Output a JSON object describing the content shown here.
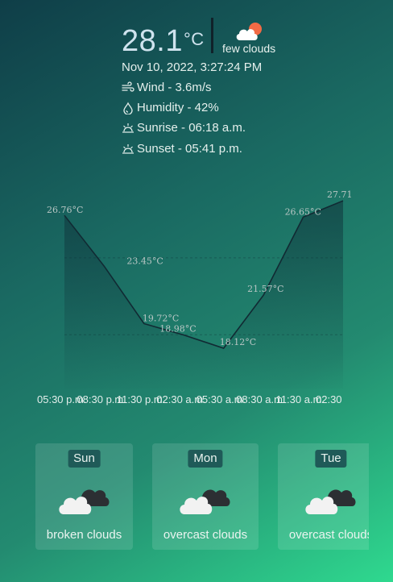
{
  "current": {
    "temperature": "28.1",
    "unit": "°C",
    "condition": "few clouds",
    "condition_icon": "few-clouds-icon",
    "datetime": "Nov 10, 2022, 3:27:24 PM",
    "wind": "Wind - 3.6m/s",
    "humidity": "Humidity - 42%",
    "sunrise": "Sunrise - 06:18 a.m.",
    "sunset": "Sunset - 05:41 p.m."
  },
  "chart_data": {
    "type": "area",
    "categories": [
      "05:30 p.m.",
      "08:30 p.m.",
      "11:30 p.m.",
      "02:30 a.m.",
      "05:30 a.m.",
      "08:30 a.m.",
      "11:30 a.m.",
      "02:30"
    ],
    "data_labels": [
      "26.76°C",
      "23.45°C",
      "19.72°C",
      "18.98°C",
      "18.12°C",
      "21.57°C",
      "26.65°C",
      "27.71"
    ],
    "values": [
      26.76,
      23.45,
      19.72,
      18.98,
      18.12,
      21.57,
      26.65,
      27.71
    ],
    "ylim": [
      15.5,
      28.5
    ],
    "grid": true
  },
  "forecast": [
    {
      "day": "Sun",
      "condition": "broken clouds",
      "icon": "broken-clouds-icon"
    },
    {
      "day": "Mon",
      "condition": "overcast clouds",
      "icon": "overcast-clouds-icon"
    },
    {
      "day": "Tue",
      "condition": "overcast clouds",
      "icon": "overcast-clouds-icon"
    }
  ],
  "colors": {
    "line": "#112a33",
    "label": "#b8c6c4",
    "day_badge": "#1f5a58",
    "card_bg": "rgba(255,255,255,0.12)"
  }
}
